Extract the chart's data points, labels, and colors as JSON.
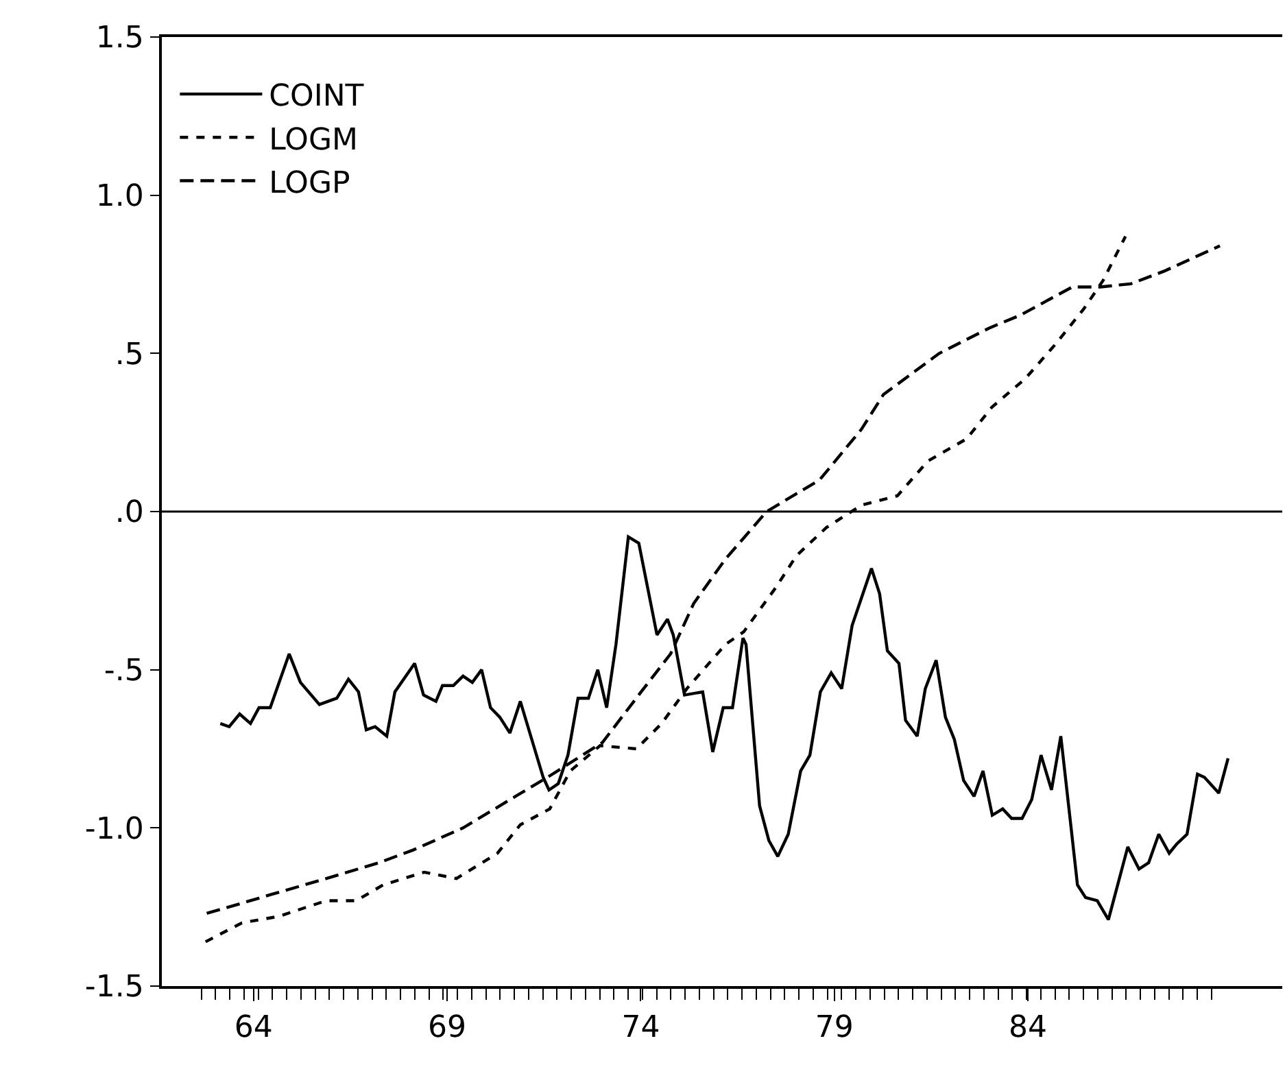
{
  "chart_data": {
    "type": "line",
    "series": [
      {
        "name": "COINT",
        "color": "#000000",
        "line_style": "solid",
        "x": [
          63.14,
          63.37,
          63.64,
          63.92,
          64.14,
          64.43,
          64.92,
          65.21,
          65.7,
          66.15,
          66.45,
          66.71,
          66.91,
          67.14,
          67.44,
          67.65,
          68.16,
          68.39,
          68.71,
          68.88,
          69.16,
          69.41,
          69.65,
          69.89,
          70.12,
          70.36,
          70.62,
          70.89,
          71.48,
          71.63,
          71.87,
          72.12,
          72.38,
          72.65,
          72.89,
          73.12,
          73.36,
          73.68,
          73.95,
          74.42,
          74.69,
          74.84,
          75.13,
          75.6,
          75.86,
          76.13,
          76.37,
          76.64,
          76.72,
          77.07,
          77.31,
          77.54,
          77.81,
          78.13,
          78.37,
          78.64,
          78.92,
          79.19,
          79.46,
          79.96,
          80.17,
          80.37,
          80.67,
          80.84,
          81.14,
          81.35,
          81.63,
          81.87,
          82.1,
          82.34,
          82.61,
          82.84,
          83.08,
          83.35,
          83.58,
          83.85,
          84.1,
          84.34,
          84.61,
          84.85,
          85.08,
          85.28,
          85.49,
          85.79,
          86.08,
          86.58,
          86.87,
          87.12,
          87.38,
          87.65,
          87.85,
          88.11,
          88.38,
          88.56,
          88.93,
          89.17
        ],
        "values": [
          -0.67,
          -0.68,
          -0.64,
          -0.67,
          -0.62,
          -0.62,
          -0.45,
          -0.54,
          -0.61,
          -0.59,
          -0.53,
          -0.57,
          -0.69,
          -0.68,
          -0.71,
          -0.57,
          -0.48,
          -0.58,
          -0.6,
          -0.55,
          -0.55,
          -0.52,
          -0.54,
          -0.5,
          -0.62,
          -0.65,
          -0.7,
          -0.6,
          -0.84,
          -0.88,
          -0.86,
          -0.77,
          -0.59,
          -0.59,
          -0.5,
          -0.62,
          -0.42,
          -0.08,
          -0.1,
          -0.39,
          -0.34,
          -0.39,
          -0.58,
          -0.57,
          -0.76,
          -0.62,
          -0.62,
          -0.4,
          -0.42,
          -0.93,
          -1.04,
          -1.09,
          -1.02,
          -0.82,
          -0.77,
          -0.57,
          -0.51,
          -0.56,
          -0.36,
          -0.18,
          -0.26,
          -0.44,
          -0.48,
          -0.66,
          -0.71,
          -0.56,
          -0.47,
          -0.65,
          -0.72,
          -0.85,
          -0.9,
          -0.82,
          -0.96,
          -0.94,
          -0.97,
          -0.97,
          -0.91,
          -0.77,
          -0.88,
          -0.71,
          -0.96,
          -1.18,
          -1.22,
          -1.23,
          -1.29,
          -1.06,
          -1.13,
          -1.11,
          -1.02,
          -1.08,
          -1.05,
          -1.02,
          -0.83,
          -0.84,
          -0.89,
          -0.78
        ]
      },
      {
        "name": "LOGM",
        "color": "#000000",
        "line_style": "dotted",
        "x": [
          62.76,
          63.7,
          64.64,
          65.88,
          66.65,
          67.35,
          68.41,
          69.24,
          70.3,
          70.89,
          71.65,
          72.18,
          72.95,
          73.89,
          74.54,
          75.19,
          76.19,
          76.66,
          77.49,
          78.02,
          78.8,
          79.7,
          80.63,
          81.42,
          82.42,
          83.07,
          83.93,
          84.72,
          85.44,
          85.94,
          86.52
        ],
        "values": [
          -1.36,
          -1.3,
          -1.28,
          -1.23,
          -1.23,
          -1.18,
          -1.14,
          -1.16,
          -1.08,
          -0.99,
          -0.94,
          -0.82,
          -0.74,
          -0.75,
          -0.67,
          -0.56,
          -0.42,
          -0.38,
          -0.24,
          -0.14,
          -0.05,
          0.02,
          0.05,
          0.16,
          0.23,
          0.33,
          0.42,
          0.53,
          0.64,
          0.73,
          0.87
        ]
      },
      {
        "name": "LOGP",
        "color": "#000000",
        "line_style": "dashed",
        "x": [
          62.79,
          63.64,
          64.47,
          65.88,
          67.24,
          68.12,
          69.41,
          70.77,
          71.59,
          73.01,
          74.01,
          74.77,
          75.37,
          76.19,
          77.25,
          78.62,
          79.7,
          80.27,
          81.71,
          83.0,
          83.79,
          85.15,
          85.87,
          86.66,
          87.52,
          88.96
        ],
        "values": [
          -1.27,
          -1.24,
          -1.21,
          -1.16,
          -1.11,
          -1.07,
          -1.0,
          -0.9,
          -0.84,
          -0.73,
          -0.57,
          -0.45,
          -0.29,
          -0.15,
          0.0,
          0.1,
          0.26,
          0.37,
          0.5,
          0.58,
          0.62,
          0.71,
          0.71,
          0.72,
          0.76,
          0.84
        ]
      }
    ],
    "xlim": [
      61.63,
      90.57
    ],
    "xticks": [
      64,
      69,
      74,
      79,
      84,
      {
        "value": 62.65,
        "label": null
      },
      {
        "value": 63.02,
        "label": null
      },
      {
        "value": 63.39,
        "label": null
      },
      {
        "value": 63.75,
        "label": null
      },
      {
        "value": 64.12,
        "label": null
      },
      {
        "value": 64.49,
        "label": null
      },
      {
        "value": 64.86,
        "label": null
      },
      {
        "value": 65.22,
        "label": null
      },
      {
        "value": 65.59,
        "label": null
      },
      {
        "value": 65.96,
        "label": null
      },
      {
        "value": 66.33,
        "label": null
      },
      {
        "value": 66.69,
        "label": null
      },
      {
        "value": 67.06,
        "label": null
      },
      {
        "value": 67.43,
        "label": null
      },
      {
        "value": 67.8,
        "label": null
      },
      {
        "value": 68.16,
        "label": null
      },
      {
        "value": 68.53,
        "label": null
      },
      {
        "value": 68.9,
        "label": null
      },
      {
        "value": 69.27,
        "label": null
      },
      {
        "value": 69.63,
        "label": null
      },
      {
        "value": 70.0,
        "label": null
      },
      {
        "value": 70.37,
        "label": null
      },
      {
        "value": 70.74,
        "label": null
      },
      {
        "value": 71.1,
        "label": null
      },
      {
        "value": 71.47,
        "label": null
      },
      {
        "value": 71.84,
        "label": null
      },
      {
        "value": 72.21,
        "label": null
      },
      {
        "value": 72.57,
        "label": null
      },
      {
        "value": 72.94,
        "label": null
      },
      {
        "value": 73.31,
        "label": null
      },
      {
        "value": 73.68,
        "label": null
      },
      {
        "value": 74.04,
        "label": null
      },
      {
        "value": 74.41,
        "label": null
      },
      {
        "value": 74.78,
        "label": null
      },
      {
        "value": 75.15,
        "label": null
      },
      {
        "value": 75.51,
        "label": null
      },
      {
        "value": 75.88,
        "label": null
      },
      {
        "value": 76.25,
        "label": null
      },
      {
        "value": 76.62,
        "label": null
      },
      {
        "value": 76.98,
        "label": null
      },
      {
        "value": 77.35,
        "label": null
      },
      {
        "value": 77.72,
        "label": null
      },
      {
        "value": 78.09,
        "label": null
      },
      {
        "value": 78.45,
        "label": null
      },
      {
        "value": 78.82,
        "label": null
      },
      {
        "value": 79.19,
        "label": null
      },
      {
        "value": 79.56,
        "label": null
      },
      {
        "value": 79.92,
        "label": null
      },
      {
        "value": 80.29,
        "label": null
      },
      {
        "value": 80.66,
        "label": null
      },
      {
        "value": 81.03,
        "label": null
      },
      {
        "value": 81.39,
        "label": null
      },
      {
        "value": 81.76,
        "label": null
      },
      {
        "value": 82.13,
        "label": null
      },
      {
        "value": 82.5,
        "label": null
      },
      {
        "value": 82.86,
        "label": null
      },
      {
        "value": 83.23,
        "label": null
      },
      {
        "value": 83.6,
        "label": null
      },
      {
        "value": 83.97,
        "label": null
      },
      {
        "value": 84.33,
        "label": null
      },
      {
        "value": 84.7,
        "label": null
      },
      {
        "value": 85.07,
        "label": null
      },
      {
        "value": 85.44,
        "label": null
      },
      {
        "value": 85.8,
        "label": null
      },
      {
        "value": 86.17,
        "label": null
      },
      {
        "value": 86.54,
        "label": null
      },
      {
        "value": 86.91,
        "label": null
      },
      {
        "value": 87.27,
        "label": null
      },
      {
        "value": 87.64,
        "label": null
      },
      {
        "value": 88.01,
        "label": null
      },
      {
        "value": 88.38,
        "label": null
      },
      {
        "value": 88.74,
        "label": null
      }
    ],
    "ylim": [
      -1.5,
      1.5
    ],
    "yticks": [
      1.5,
      {
        "value": 1.0,
        "label": "1.0"
      },
      {
        "value": 0.5,
        "label": ".5"
      },
      {
        "value": 0,
        "label": ".0"
      },
      {
        "value": -0.5,
        "label": "-.5"
      },
      {
        "value": -1.0,
        "label": "-1.0"
      },
      -1.5
    ],
    "ref_lines": [
      {
        "axis": "y",
        "value": 0,
        "label": null,
        "color": "#000000"
      }
    ],
    "legend": "top left",
    "marker": "none"
  }
}
